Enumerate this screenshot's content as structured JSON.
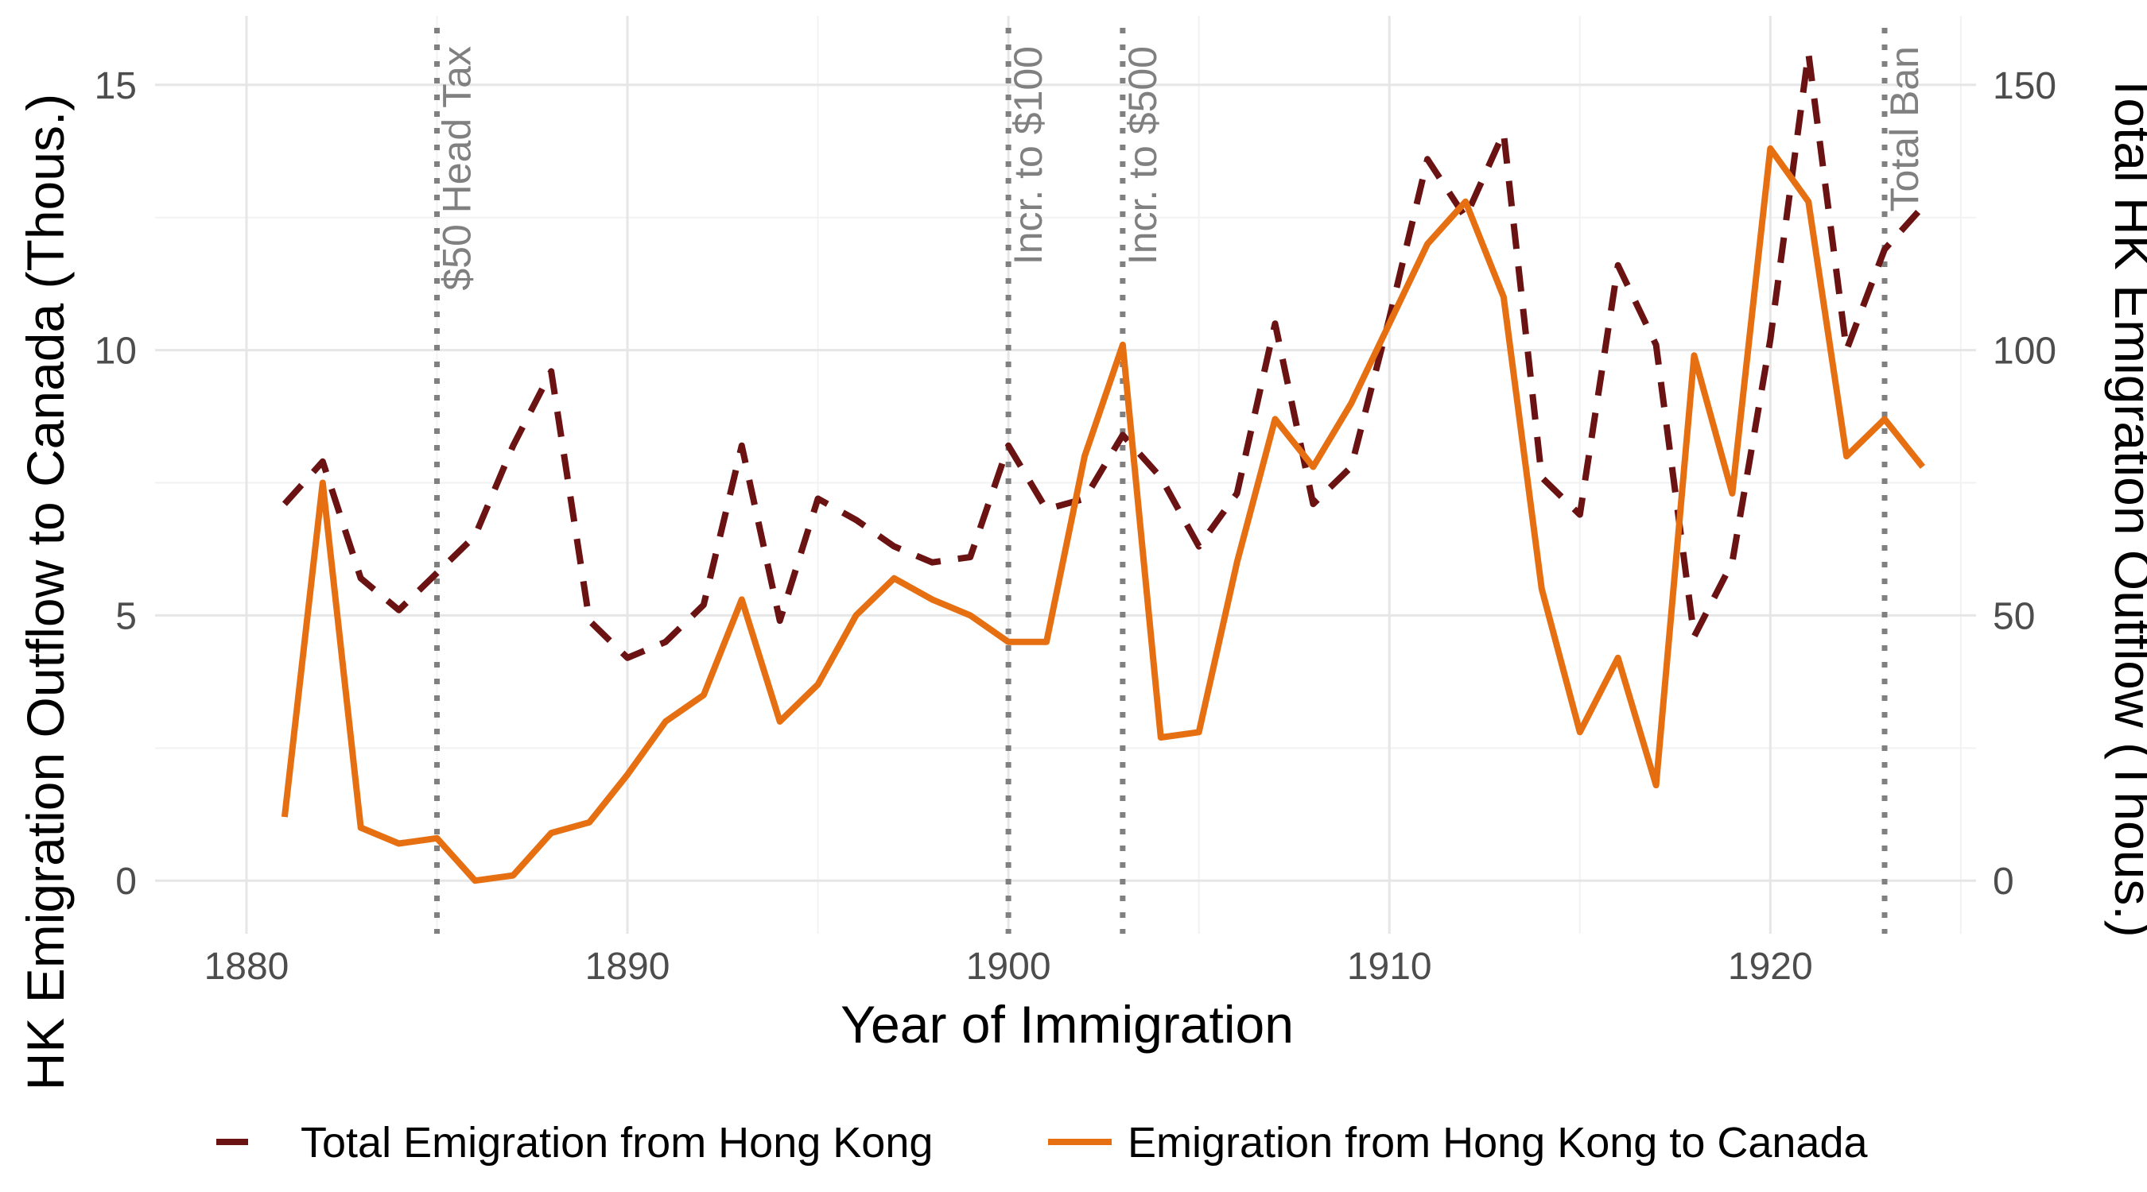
{
  "chart_data": {
    "type": "line",
    "x_axis": {
      "label": "Year of Immigration",
      "range": [
        1877.6,
        1925.4
      ],
      "ticks": [
        1880,
        1890,
        1900,
        1910,
        1920
      ],
      "minor_ticks": [
        1885,
        1895,
        1905,
        1915,
        1925
      ]
    },
    "y_left": {
      "label": "HK Emigration Outflow to Canada (Thous.)",
      "range": [
        -1.0,
        16.3
      ],
      "ticks": [
        0,
        5,
        10,
        15
      ],
      "minor_ticks": [
        2.5,
        7.5,
        12.5
      ]
    },
    "y_right": {
      "label": "Total HK Emigration Outflow (Thous.)",
      "range": [
        -10,
        163
      ],
      "ticks": [
        0,
        50,
        100,
        150
      ]
    },
    "grid": true,
    "legend_position": "bottom",
    "annotations": [
      {
        "x": 1885,
        "label": "$50 Head Tax"
      },
      {
        "x": 1900,
        "label": "Incr. to $100"
      },
      {
        "x": 1903,
        "label": "Incr. to $500"
      },
      {
        "x": 1923,
        "label": "Total Ban"
      }
    ],
    "series": [
      {
        "name": "Total Emigration from Hong Kong",
        "axis": "right",
        "style": "dashed",
        "color": "#6b1212",
        "x": [
          1881,
          1882,
          1883,
          1884,
          1885,
          1886,
          1887,
          1888,
          1889,
          1890,
          1891,
          1892,
          1893,
          1894,
          1895,
          1896,
          1897,
          1898,
          1899,
          1900,
          1901,
          1902,
          1903,
          1904,
          1905,
          1906,
          1907,
          1908,
          1909,
          1910,
          1911,
          1912,
          1913,
          1914,
          1915,
          1916,
          1917,
          1918,
          1919,
          1920,
          1921,
          1922,
          1923,
          1924
        ],
        "y": [
          71,
          79,
          57,
          51,
          58,
          65,
          82,
          96,
          49,
          42,
          45,
          52,
          82,
          49,
          72,
          68,
          63,
          60,
          61,
          82,
          70,
          72,
          84,
          76,
          63,
          73,
          105,
          71,
          78,
          106,
          136,
          125,
          141,
          76,
          69,
          116,
          101,
          46,
          60,
          102,
          156,
          100,
          119,
          127
        ]
      },
      {
        "name": "Emigration from Hong Kong to Canada",
        "axis": "left",
        "style": "solid",
        "color": "#e66f12",
        "x": [
          1881,
          1882,
          1883,
          1884,
          1885,
          1886,
          1887,
          1888,
          1889,
          1890,
          1891,
          1892,
          1893,
          1894,
          1895,
          1896,
          1897,
          1898,
          1899,
          1900,
          1901,
          1902,
          1903,
          1904,
          1905,
          1906,
          1907,
          1908,
          1909,
          1910,
          1911,
          1912,
          1913,
          1914,
          1915,
          1916,
          1917,
          1918,
          1919,
          1920,
          1921,
          1922,
          1923,
          1924
        ],
        "y": [
          1.2,
          7.5,
          1.0,
          0.7,
          0.8,
          0.0,
          0.1,
          0.9,
          1.1,
          2.0,
          3.0,
          3.5,
          5.3,
          3.0,
          3.7,
          5.0,
          5.7,
          5.3,
          5.0,
          4.5,
          4.5,
          8.0,
          10.1,
          2.7,
          2.8,
          6.0,
          8.7,
          7.8,
          9.0,
          10.5,
          12.0,
          12.8,
          11.0,
          5.5,
          2.8,
          4.2,
          1.8,
          9.9,
          7.3,
          13.8,
          12.8,
          8.0,
          8.7,
          7.8
        ]
      }
    ]
  }
}
